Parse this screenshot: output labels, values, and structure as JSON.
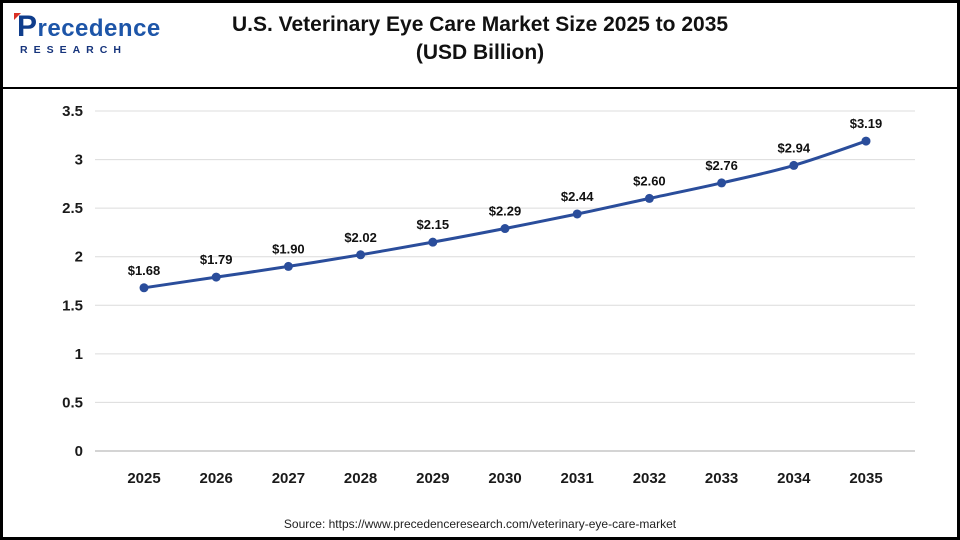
{
  "header": {
    "logo": {
      "name": "Precedence",
      "tagline": "RESEARCH"
    },
    "title_line1": "U.S. Veterinary Eye Care Market Size 2025 to 2035",
    "title_line2": "(USD Billion)"
  },
  "footer": {
    "source": "Source: https://www.precedenceresearch.com/veterinary-eye-care-market"
  },
  "chart_data": {
    "type": "line",
    "title": "U.S. Veterinary Eye Care Market Size 2025 to 2035 (USD Billion)",
    "categories": [
      "2025",
      "2026",
      "2027",
      "2028",
      "2029",
      "2030",
      "2031",
      "2032",
      "2033",
      "2034",
      "2035"
    ],
    "values": [
      1.68,
      1.79,
      1.9,
      2.02,
      2.15,
      2.29,
      2.44,
      2.6,
      2.76,
      2.94,
      3.19
    ],
    "point_labels": [
      "$1.68",
      "$1.79",
      "$1.90",
      "$2.02",
      "$2.15",
      "$2.29",
      "$2.44",
      "$2.60",
      "$2.76",
      "$2.94",
      "$3.19"
    ],
    "xlabel": "",
    "ylabel": "",
    "ylim": [
      0,
      3.5
    ],
    "ytick_step": 0.5,
    "ytick_labels": [
      "0",
      "0.5",
      "1",
      "1.5",
      "2",
      "2.5",
      "3",
      "3.5"
    ],
    "grid": true,
    "legend": "none",
    "line_color": "#2a4d9b",
    "marker_color": "#2a4d9b",
    "label_color": "#111111",
    "axis_text_color": "#1a1a1a",
    "gridline_color": "#dcdcdc",
    "baseline_color": "#a9a9a9"
  }
}
